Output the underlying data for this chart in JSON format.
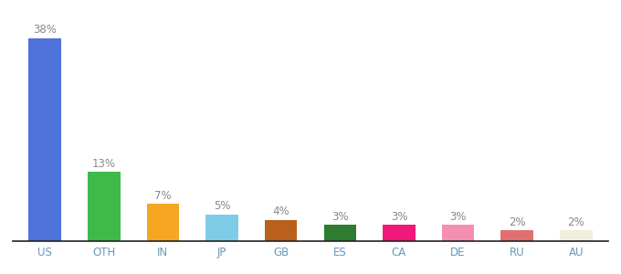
{
  "categories": [
    "US",
    "OTH",
    "IN",
    "JP",
    "GB",
    "ES",
    "CA",
    "DE",
    "RU",
    "AU"
  ],
  "values": [
    38,
    13,
    7,
    5,
    4,
    3,
    3,
    3,
    2,
    2
  ],
  "bar_colors": [
    "#4d72d9",
    "#3dba4a",
    "#f5a623",
    "#7ecce8",
    "#b8601c",
    "#2e7d32",
    "#f0197a",
    "#f48fb1",
    "#e07070",
    "#f0eedd"
  ],
  "ylim": [
    0,
    41
  ],
  "label_color": "#888888",
  "label_fontsize": 8.5,
  "tick_fontsize": 8.5,
  "tick_color": "#6699bb",
  "bg_color": "#ffffff",
  "bar_width": 0.55
}
